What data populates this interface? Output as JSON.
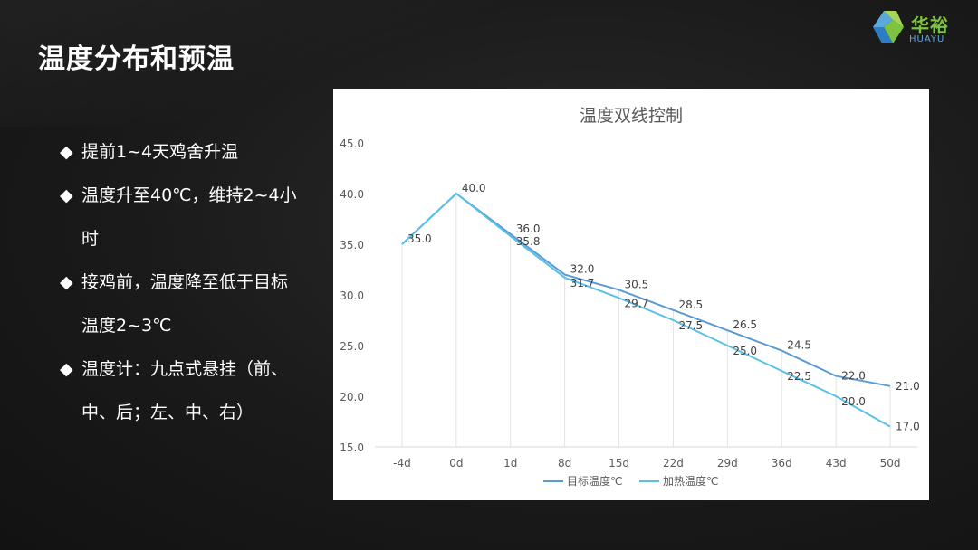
{
  "page": {
    "title": "温度分布和预温",
    "logo": {
      "name": "华裕",
      "sub": "HUAYU"
    }
  },
  "bullets": [
    {
      "line1": "提前1~4天鸡舍升温",
      "line2": ""
    },
    {
      "line1": "温度升至40℃，维持2~4小",
      "line2": "时"
    },
    {
      "line1": "接鸡前，温度降至低于目标",
      "line2": "温度2~3℃"
    },
    {
      "line1": "温度计：九点式悬挂（前、",
      "line2": "中、后；左、中、右）"
    }
  ],
  "bullet_mark": "◆",
  "chart_data": {
    "type": "line",
    "title": "温度双线控制",
    "categories": [
      "-4d",
      "0d",
      "1d",
      "8d",
      "15d",
      "22d",
      "29d",
      "36d",
      "43d",
      "50d"
    ],
    "ylim": [
      15,
      45
    ],
    "yticks": [
      "15.0",
      "20.0",
      "25.0",
      "30.0",
      "35.0",
      "40.0",
      "45.0"
    ],
    "grid": "vertical drop lines",
    "legend": "bottom",
    "series": [
      {
        "name": "目标温度℃",
        "color": "#5b9bd5",
        "values": [
          35.0,
          40.0,
          36.0,
          32.0,
          30.5,
          28.5,
          26.5,
          24.5,
          22.0,
          21.0
        ],
        "labels": [
          "35.0",
          "40.0",
          "36.0",
          "32.0",
          "30.5",
          "28.5",
          "26.5",
          "24.5",
          "22.0",
          "21.0"
        ]
      },
      {
        "name": "加热温度℃",
        "color": "#5bc0e8",
        "values": [
          35.0,
          40.0,
          35.8,
          31.7,
          29.7,
          27.5,
          25.0,
          22.5,
          20.0,
          17.0
        ],
        "labels": [
          "35.0",
          "40.0",
          "35.8",
          "31.7",
          "29.7",
          "27.5",
          "25.0",
          "22.5",
          "20.0",
          "17.0"
        ]
      }
    ]
  }
}
